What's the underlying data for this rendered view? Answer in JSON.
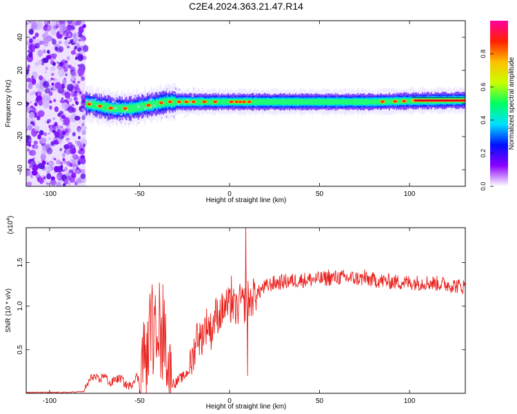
{
  "title": "C2E4.2024.363.21.47.R14",
  "chart_data": [
    {
      "type": "heatmap",
      "xlabel": "Height of straight line (km)",
      "ylabel": "Frequency (Hz)",
      "xlim": [
        -113,
        131
      ],
      "ylim": [
        -50,
        50
      ],
      "xticks": [
        -100,
        -50,
        0,
        50,
        100
      ],
      "yticks": [
        -40,
        -20,
        0,
        20,
        40
      ],
      "grid": false,
      "colorbar": {
        "label": "Normalized spectral amplitude",
        "range": [
          0.0,
          1.0
        ],
        "ticks": [
          "0.0",
          "0.2",
          "0.4",
          "0.6",
          "0.8"
        ],
        "colormap": [
          "#ffffff",
          "#8a00ff",
          "#0010ff",
          "#00e0ff",
          "#00ff60",
          "#c8ff00",
          "#ffc000",
          "#ff2000",
          "#ff00a0"
        ]
      },
      "noise_region_x": [
        -113,
        -80
      ],
      "band_center_hz": [
        [
          -80,
          0
        ],
        [
          -75,
          -1
        ],
        [
          -70,
          -2
        ],
        [
          -65,
          -3
        ],
        [
          -60,
          -3
        ],
        [
          -55,
          -3
        ],
        [
          -50,
          -2
        ],
        [
          -45,
          -1
        ],
        [
          -40,
          0
        ],
        [
          -35,
          1
        ],
        [
          -30,
          1
        ],
        [
          -20,
          1
        ],
        [
          -10,
          1
        ],
        [
          0,
          1
        ],
        [
          10,
          1
        ],
        [
          20,
          1
        ],
        [
          40,
          1
        ],
        [
          60,
          1
        ],
        [
          80,
          1
        ],
        [
          100,
          1.5
        ],
        [
          131,
          2
        ]
      ]
    },
    {
      "type": "line",
      "xlabel": "Height of straight line (km)",
      "ylabel": "SNR (10 * v/v)",
      "y_multiplier": "(x10",
      "y_multiplier_exp": "4",
      "y_multiplier_close": ")",
      "xlim": [
        -113,
        131
      ],
      "ylim": [
        0,
        1.9
      ],
      "xticks": [
        -100,
        -50,
        0,
        50,
        100
      ],
      "yticks": [
        "0.5",
        "1.0",
        "1.5"
      ],
      "grid": false,
      "series": [
        {
          "color": "#e8201c",
          "points": [
            [
              -113,
              0.01
            ],
            [
              -100,
              0.01
            ],
            [
              -90,
              0.01
            ],
            [
              -81,
              0.02
            ],
            [
              -78,
              0.14
            ],
            [
              -76,
              0.2
            ],
            [
              -72,
              0.14
            ],
            [
              -70,
              0.22
            ],
            [
              -66,
              0.1
            ],
            [
              -64,
              0.16
            ],
            [
              -60,
              0.17
            ],
            [
              -58,
              0.1
            ],
            [
              -55,
              0.08
            ],
            [
              -52,
              0.2
            ],
            [
              -50,
              0.14
            ],
            [
              -48,
              0.5
            ],
            [
              -46,
              0.3
            ],
            [
              -44,
              0.85
            ],
            [
              -42,
              0.55
            ],
            [
              -40,
              0.95
            ],
            [
              -38,
              0.45
            ],
            [
              -36,
              0.7
            ],
            [
              -34,
              0.3
            ],
            [
              -32,
              0.12
            ],
            [
              -30,
              0.12
            ],
            [
              -28,
              0.16
            ],
            [
              -25,
              0.2
            ],
            [
              -22,
              0.28
            ],
            [
              -20,
              0.45
            ],
            [
              -18,
              0.7
            ],
            [
              -16,
              0.6
            ],
            [
              -14,
              0.75
            ],
            [
              -12,
              0.8
            ],
            [
              -10,
              0.7
            ],
            [
              -8,
              0.9
            ],
            [
              -6,
              0.9
            ],
            [
              -4,
              0.95
            ],
            [
              -2,
              1.0
            ],
            [
              0,
              1.0
            ],
            [
              2,
              1.0
            ],
            [
              4,
              0.95
            ],
            [
              6,
              1.05
            ],
            [
              8,
              1.0
            ],
            [
              10,
              1.1
            ],
            [
              12,
              1.05
            ],
            [
              14,
              1.15
            ],
            [
              16,
              1.15
            ],
            [
              18,
              1.2
            ],
            [
              20,
              1.22
            ],
            [
              24,
              1.26
            ],
            [
              30,
              1.28
            ],
            [
              40,
              1.3
            ],
            [
              50,
              1.31
            ],
            [
              60,
              1.33
            ],
            [
              70,
              1.32
            ],
            [
              80,
              1.3
            ],
            [
              90,
              1.28
            ],
            [
              100,
              1.27
            ],
            [
              110,
              1.27
            ],
            [
              120,
              1.25
            ],
            [
              131,
              1.22
            ]
          ],
          "spikes": [
            [
              -43,
              1.25
            ],
            [
              -39,
              1.27
            ],
            [
              -37,
              1.25
            ],
            [
              1,
              1.35
            ],
            [
              6,
              1.18
            ],
            [
              9,
              1.92
            ],
            [
              10,
              0.2
            ],
            [
              11,
              1.1
            ],
            [
              55,
              1.42
            ],
            [
              75,
              1.42
            ]
          ]
        }
      ]
    }
  ]
}
